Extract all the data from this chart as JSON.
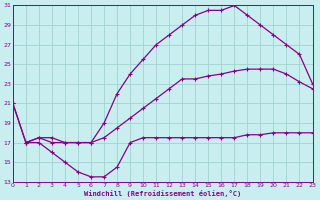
{
  "xlabel": "Windchill (Refroidissement éolien,°C)",
  "bg_color": "#c8eef0",
  "grid_color": "#a0d4cc",
  "line_color": "#880088",
  "xmin": 0,
  "xmax": 23,
  "ymin": 13,
  "ymax": 31,
  "yticks": [
    13,
    15,
    17,
    19,
    21,
    23,
    25,
    27,
    29,
    31
  ],
  "xticks": [
    0,
    1,
    2,
    3,
    4,
    5,
    6,
    7,
    8,
    9,
    10,
    11,
    12,
    13,
    14,
    15,
    16,
    17,
    18,
    19,
    20,
    21,
    22,
    23
  ],
  "line1_x": [
    0,
    1,
    2,
    3,
    4,
    5,
    6,
    7,
    8,
    9,
    10,
    11,
    12,
    13,
    14,
    15,
    16,
    17,
    18,
    19,
    20,
    21,
    22,
    23
  ],
  "line1_y": [
    21,
    17,
    17.5,
    17.5,
    17,
    17,
    17,
    19,
    22,
    24,
    25.5,
    27,
    28,
    29,
    30,
    30.5,
    30.5,
    31,
    30,
    29,
    28,
    27,
    26,
    23
  ],
  "line2_x": [
    0,
    1,
    2,
    3,
    4,
    5,
    6,
    7,
    8,
    9,
    10,
    11,
    12,
    13,
    14,
    15,
    16,
    17,
    18,
    19,
    20,
    21,
    22,
    23
  ],
  "line2_y": [
    21,
    17,
    17.5,
    17,
    17,
    17,
    17,
    17.5,
    18.5,
    19.5,
    20.5,
    21.5,
    22.5,
    23.5,
    23.5,
    23.8,
    24,
    24.3,
    24.5,
    24.5,
    24.5,
    24,
    23.2,
    22.5
  ],
  "line3_x": [
    1,
    2,
    3,
    4,
    5,
    6,
    7,
    8,
    9,
    10,
    11,
    12,
    13,
    14,
    15,
    16,
    17,
    18,
    19,
    20,
    21,
    22,
    23
  ],
  "line3_y": [
    17,
    17,
    16,
    15,
    14,
    13.5,
    13.5,
    14.5,
    17,
    17.5,
    17.5,
    17.5,
    17.5,
    17.5,
    17.5,
    17.5,
    17.5,
    17.8,
    17.8,
    18,
    18,
    18,
    18
  ]
}
